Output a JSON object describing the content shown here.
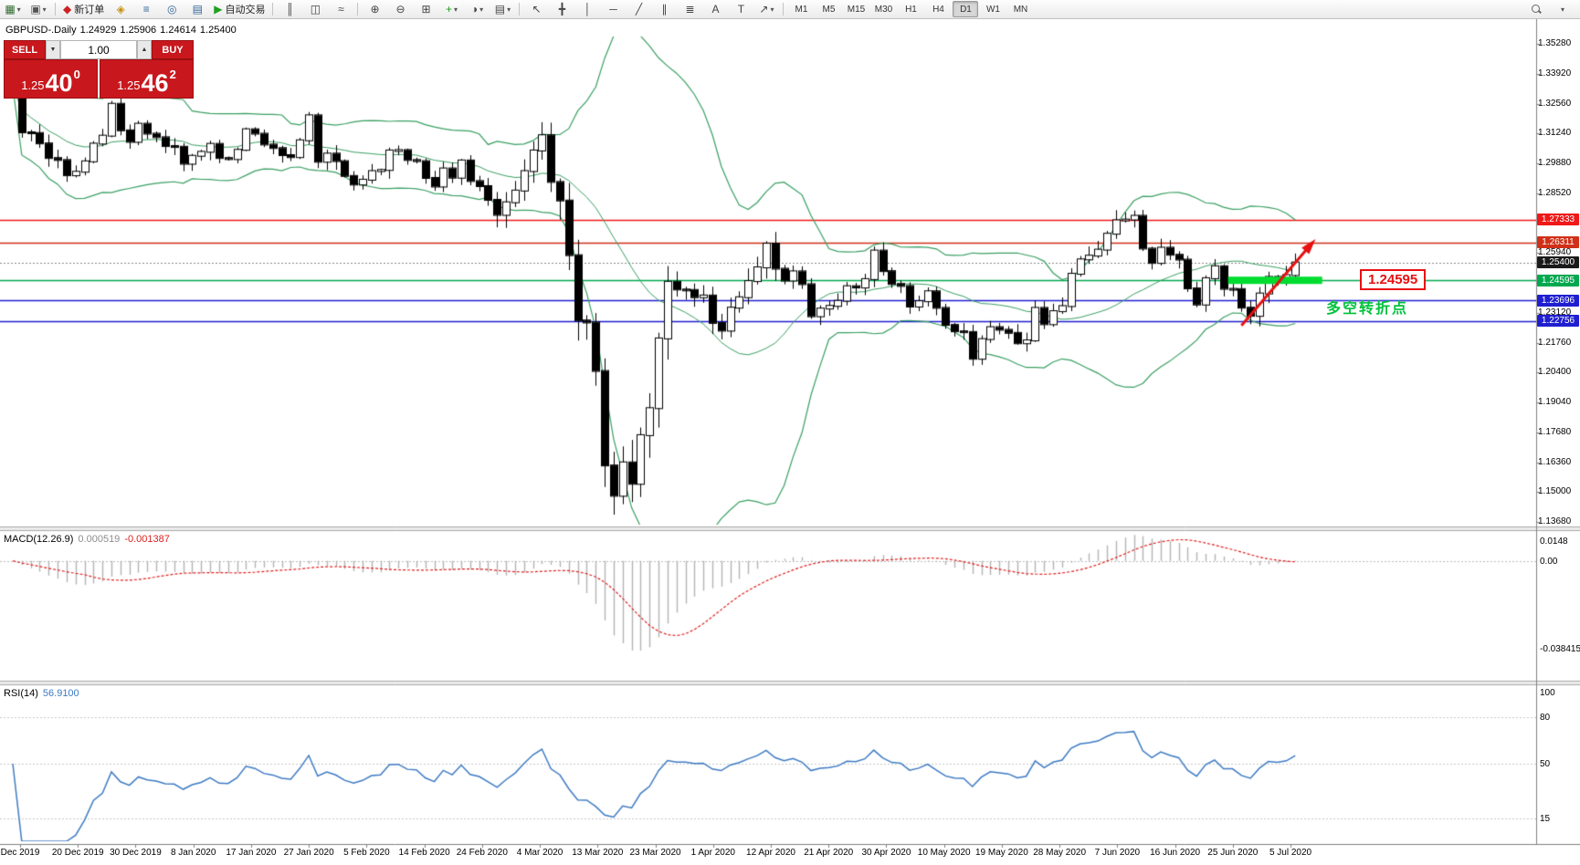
{
  "toolbar": {
    "items": [
      {
        "name": "new-chart",
        "glyph": "▦",
        "color": "#2f6b2f",
        "caret": true
      },
      {
        "name": "chart-profiles",
        "glyph": "▣",
        "color": "#555",
        "caret": true
      },
      {
        "sep": true
      },
      {
        "name": "new-order",
        "glyph": "◆",
        "color": "#cc2222",
        "label": "新订单"
      },
      {
        "name": "metaeditor",
        "glyph": "◈",
        "color": "#c89010"
      },
      {
        "name": "market-watch",
        "glyph": "≡",
        "color": "#336699"
      },
      {
        "name": "navigator",
        "glyph": "◎",
        "color": "#336699"
      },
      {
        "name": "terminal",
        "glyph": "▤",
        "color": "#336699"
      },
      {
        "name": "auto-trading",
        "glyph": "▶",
        "color": "#1fa11f",
        "label": "自动交易"
      },
      {
        "sep": true
      },
      {
        "name": "chart-bars",
        "glyph": "║",
        "color": "#444"
      },
      {
        "name": "chart-candles",
        "glyph": "◫",
        "color": "#444"
      },
      {
        "name": "chart-line",
        "glyph": "≈",
        "color": "#444"
      },
      {
        "sep": true
      },
      {
        "name": "zoom-in",
        "glyph": "⊕",
        "color": "#444"
      },
      {
        "name": "zoom-out",
        "glyph": "⊖",
        "color": "#444"
      },
      {
        "name": "tile-windows",
        "glyph": "⊞",
        "color": "#444"
      },
      {
        "name": "indicators",
        "glyph": "+",
        "color": "#1fa11f",
        "caret": true
      },
      {
        "name": "periods",
        "glyph": "◑",
        "color": "#444",
        "caret": true
      },
      {
        "name": "templates",
        "glyph": "▤",
        "color": "#444",
        "caret": true
      },
      {
        "sep": true
      },
      {
        "name": "cursor",
        "glyph": "↖",
        "color": "#444"
      },
      {
        "name": "crosshair",
        "glyph": "╋",
        "color": "#444"
      },
      {
        "name": "vertical-line",
        "glyph": "│",
        "color": "#444"
      },
      {
        "name": "horizontal-line",
        "glyph": "─",
        "color": "#444"
      },
      {
        "name": "trendline",
        "glyph": "╱",
        "color": "#444"
      },
      {
        "name": "channel",
        "glyph": "∥",
        "color": "#444"
      },
      {
        "name": "fibonacci",
        "glyph": "≣",
        "color": "#444"
      },
      {
        "name": "text-tool",
        "glyph": "A",
        "color": "#444"
      },
      {
        "name": "label-tool",
        "glyph": "T",
        "color": "#444"
      },
      {
        "name": "arrows-tool",
        "glyph": "↗",
        "color": "#444",
        "caret": true
      },
      {
        "sep": true
      }
    ],
    "timeframes": [
      "M1",
      "M5",
      "M15",
      "M30",
      "H1",
      "H4",
      "D1",
      "W1",
      "MN"
    ],
    "active_timeframe": "D1"
  },
  "trade_panel": {
    "sell_label": "SELL",
    "buy_label": "BUY",
    "lot": "1.00",
    "sell_price": {
      "prefix": "1.25",
      "big": "40",
      "sup": "0"
    },
    "buy_price": {
      "prefix": "1.25",
      "big": "46",
      "sup": "2"
    }
  },
  "chart": {
    "info": {
      "symbol": "GBPUSD-.Daily",
      "open": "1.24929",
      "high": "1.25906",
      "low": "1.24614",
      "close": "1.25400"
    },
    "axis_top_price": 1.3528,
    "axis_bottom_price": 1.1368,
    "price_axis_labels": [
      "1.35280",
      "1.33920",
      "1.32560",
      "1.31240",
      "1.29880",
      "1.28520",
      "1.27160",
      "1.25940",
      "1.24440",
      "1.23120",
      "1.21760",
      "1.20400",
      "1.19040",
      "1.17680",
      "1.16360",
      "1.15000",
      "1.13680"
    ],
    "hlines": [
      {
        "price": 1.27333,
        "color": "#f01818",
        "tag": "1.27333"
      },
      {
        "price": 1.26311,
        "color": "#d03018",
        "tag": "1.26311"
      },
      {
        "price": 1.24595,
        "color": "#00a84e",
        "tag": "1.24595"
      },
      {
        "price": 1.23696,
        "color": "#1f1fd0",
        "tag": "1.23696"
      },
      {
        "price": 1.22756,
        "color": "#1f1fd0",
        "tag": "1.22756"
      }
    ],
    "bid": {
      "price": 1.254,
      "tag": "1.25400",
      "bg": "#1a1a1a"
    },
    "bollinger": {
      "period": 20,
      "deviation": 2,
      "color": "#3aa063"
    },
    "highlight_bar": {
      "price": 1.24595,
      "from_bar": 135.5,
      "to_bar": 146,
      "color": "#00dd30"
    },
    "arrow": {
      "from_bar": 137,
      "from_price": 1.2255,
      "to_bar": 144.6,
      "to_price": 1.2615,
      "color": "#e81010"
    },
    "annotations": {
      "price_label": {
        "text": "1.24595"
      },
      "turning_point": {
        "text": "多空转折点"
      }
    },
    "chart_data": {
      "type": "candlestick",
      "symbol": "GBPUSD",
      "period": "Daily",
      "first_open": 1.339,
      "closes": [
        1.3333,
        1.3128,
        1.3125,
        1.3078,
        1.3012,
        1.3003,
        1.2934,
        1.295,
        1.2997,
        1.3077,
        1.3113,
        1.3257,
        1.3137,
        1.3085,
        1.3167,
        1.3122,
        1.3106,
        1.3066,
        1.3063,
        1.2986,
        1.3022,
        1.304,
        1.3076,
        1.3012,
        1.3007,
        1.3049,
        1.3142,
        1.3122,
        1.3073,
        1.3057,
        1.3025,
        1.3016,
        1.3092,
        1.3205,
        1.2995,
        1.3032,
        1.2998,
        1.2931,
        1.2892,
        1.2914,
        1.2953,
        1.2958,
        1.3046,
        1.3048,
        1.3003,
        1.2998,
        1.2922,
        1.2883,
        1.2965,
        1.2923,
        1.3001,
        1.2908,
        1.2885,
        1.2823,
        1.2755,
        1.2812,
        1.2865,
        1.2953,
        1.3046,
        1.3115,
        1.2904,
        1.282,
        1.2573,
        1.2278,
        1.2269,
        1.205,
        1.1623,
        1.1486,
        1.1637,
        1.154,
        1.176,
        1.1882,
        1.2197,
        1.2453,
        1.2418,
        1.2416,
        1.2383,
        1.2391,
        1.2267,
        1.2232,
        1.2336,
        1.2383,
        1.2456,
        1.2518,
        1.2625,
        1.2512,
        1.2458,
        1.25,
        1.2442,
        1.2297,
        1.2332,
        1.2344,
        1.2367,
        1.2433,
        1.2427,
        1.2465,
        1.2594,
        1.2501,
        1.2443,
        1.2434,
        1.2341,
        1.2365,
        1.241,
        1.2335,
        1.2258,
        1.2229,
        1.2226,
        1.2105,
        1.2194,
        1.2248,
        1.2236,
        1.2222,
        1.2175,
        1.2188,
        1.2335,
        1.2261,
        1.232,
        1.2343,
        1.2489,
        1.2554,
        1.2571,
        1.2598,
        1.267,
        1.2731,
        1.2734,
        1.2751,
        1.2603,
        1.2538,
        1.2607,
        1.2575,
        1.2553,
        1.2423,
        1.235,
        1.2469,
        1.2523,
        1.2421,
        1.242,
        1.2336,
        1.2299,
        1.24,
        1.2475,
        1.2466,
        1.2483,
        1.254
      ]
    }
  },
  "macd": {
    "label": "MACD(12.26.9)",
    "value_main": "0.000519",
    "value_signal": "-0.001387",
    "axis_labels": {
      "top": "0.0148",
      "zero": "0.00",
      "bottom": "-0.038415"
    },
    "histogram_color": "#b4b4b4",
    "signal_color": "#e02020"
  },
  "rsi": {
    "label": "RSI(14)",
    "value": "56.9100",
    "axis_labels": [
      "100",
      "80",
      "50",
      "15"
    ],
    "levels": [
      80,
      50,
      15
    ],
    "color": "#3e7bc4"
  },
  "time_axis": {
    "labels": [
      "Dec 2019",
      "20 Dec 2019",
      "30 Dec 2019",
      "8 Jan 2020",
      "17 Jan 2020",
      "27 Jan 2020",
      "5 Feb 2020",
      "14 Feb 2020",
      "24 Feb 2020",
      "4 Mar 2020",
      "13 Mar 2020",
      "23 Mar 2020",
      "1 Apr 2020",
      "12 Apr 2020",
      "21 Apr 2020",
      "30 Apr 2020",
      "10 May 2020",
      "19 May 2020",
      "28 May 2020",
      "7 Jun 2020",
      "16 Jun 2020",
      "25 Jun 2020",
      "5 Jul 2020"
    ]
  }
}
